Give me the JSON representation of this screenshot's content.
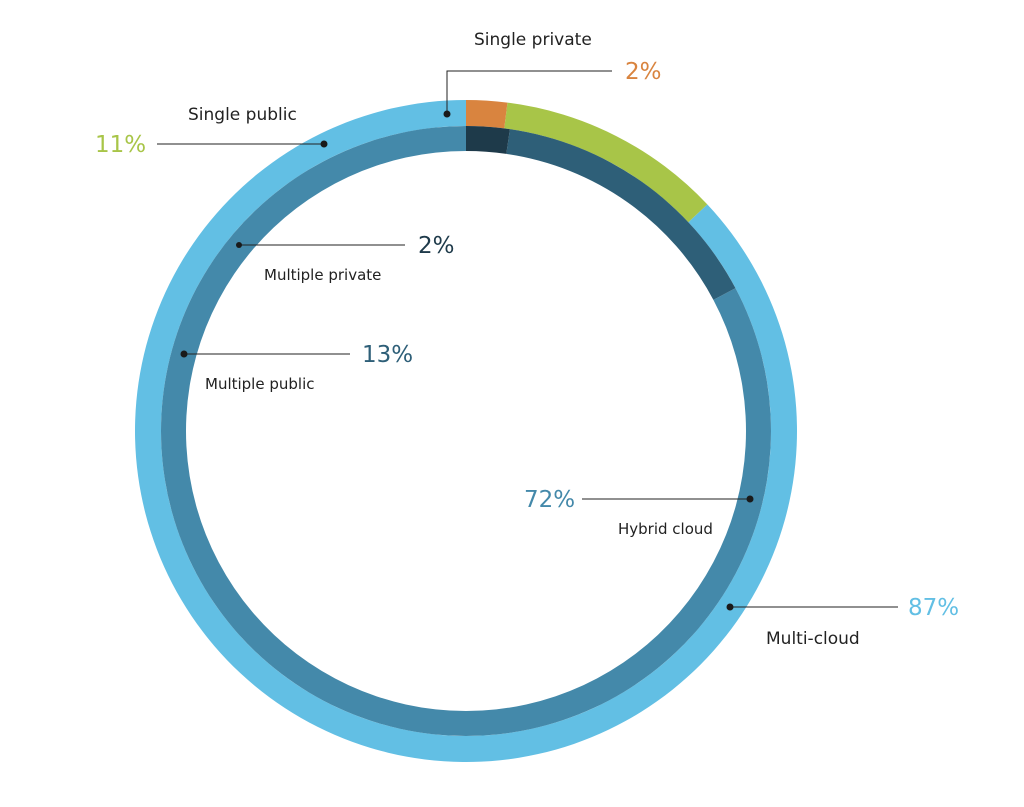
{
  "chart_data": {
    "type": "pie",
    "style": "nested-ring",
    "outer_ring": {
      "slices": [
        {
          "name": "Multi-cloud",
          "percent": "87%",
          "value": 87,
          "color": "#62bfe4"
        },
        {
          "name": "Single public",
          "percent": "11%",
          "value": 11,
          "color": "#a8c548"
        },
        {
          "name": "Single private",
          "percent": "2%",
          "value": 2,
          "color": "#d9843f"
        }
      ]
    },
    "inner_ring": {
      "slices": [
        {
          "name": "Hybrid cloud",
          "percent": "72%",
          "value": 72,
          "color": "#4489aa"
        },
        {
          "name": "Multiple public",
          "percent": "13%",
          "value": 13,
          "color": "#2e5f78"
        },
        {
          "name": "Multiple private",
          "percent": "2%",
          "value": 2,
          "color": "#1e3a4a"
        }
      ]
    },
    "label_colors": {
      "Multi-cloud": "#62bfe4",
      "Single public": "#a8c548",
      "Single private": "#d9843f",
      "Hybrid cloud": "#4489aa",
      "Multiple public": "#2e5f78",
      "Multiple private": "#1e3a4a"
    }
  }
}
